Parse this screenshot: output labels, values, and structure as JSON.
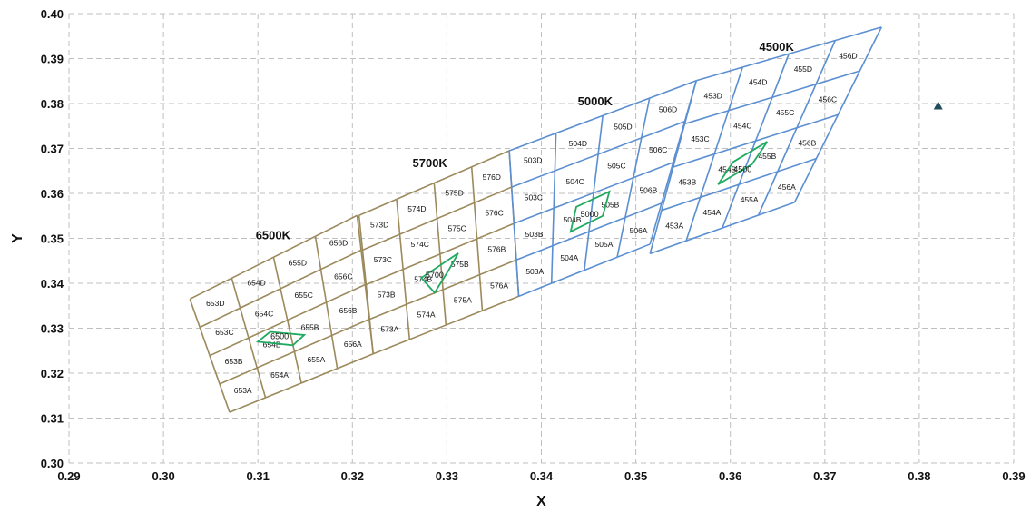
{
  "chart_data": {
    "type": "scatter",
    "xlabel": "X",
    "ylabel": "Y",
    "xlim": [
      0.29,
      0.39
    ],
    "ylim": [
      0.3,
      0.4
    ],
    "xticks": [
      "0.29",
      "0.30",
      "0.31",
      "0.32",
      "0.33",
      "0.34",
      "0.35",
      "0.36",
      "0.37",
      "0.38",
      "0.39"
    ],
    "yticks": [
      "0.30",
      "0.31",
      "0.32",
      "0.33",
      "0.34",
      "0.35",
      "0.36",
      "0.37",
      "0.38",
      "0.39",
      "0.40"
    ],
    "grid": true,
    "colors": {
      "warm_bins": "#9C8A5C",
      "cool_bins": "#5B8FD1",
      "center_quads": "#1FAA60",
      "marker": "#1F4E5A",
      "grid": "#BFBFBF"
    },
    "groups": [
      {
        "name": "6500K",
        "color": "warm",
        "bl": [
          0.307,
          0.3113
        ],
        "br": [
          0.3222,
          0.3243
        ],
        "tr": [
          0.3205,
          0.3551
        ],
        "tl": [
          0.3028,
          0.3365
        ],
        "cols": [
          "3",
          "4",
          "5",
          "6",
          "7"
        ],
        "rows": [
          "A",
          "B",
          "C",
          "D"
        ],
        "label": "6500K",
        "label_at": [
          0.3116,
          0.3498
        ],
        "center": {
          "label": "6500",
          "at": [
            0.3123,
            0.3282
          ],
          "pts": [
            [
              0.3113,
              0.3292
            ],
            [
              0.3149,
              0.3285
            ],
            [
              0.3137,
              0.3262
            ],
            [
              0.31,
              0.327
            ]
          ]
        }
      },
      {
        "name": "5700K",
        "color": "warm",
        "bl": [
          0.3222,
          0.3243
        ],
        "br": [
          0.3376,
          0.3371
        ],
        "tr": [
          0.3366,
          0.3695
        ],
        "tl": [
          0.3207,
          0.3551
        ],
        "cols": [
          "3",
          "4",
          "5",
          "6",
          "7"
        ],
        "rows": [
          "A",
          "B",
          "C",
          "D"
        ],
        "label": "5700K",
        "label_at": [
          0.3282,
          0.3659
        ],
        "center": {
          "label": "5700",
          "at": [
            0.3287,
            0.3418
          ],
          "pts": [
            [
              0.3312,
              0.3467
            ],
            [
              0.3301,
              0.3426
            ],
            [
              0.3287,
              0.3379
            ],
            [
              0.3273,
              0.3412
            ]
          ]
        }
      },
      {
        "name": "5000K",
        "color": "cool",
        "bl": [
          0.3376,
          0.3371
        ],
        "br": [
          0.3515,
          0.3487
        ],
        "tr": [
          0.3564,
          0.3851
        ],
        "tl": [
          0.3366,
          0.3695
        ],
        "cols": [
          "3",
          "4",
          "5",
          "6",
          "7"
        ],
        "rows": [
          "A",
          "B",
          "C",
          "D"
        ],
        "label": "5000K",
        "label_at": [
          0.3457,
          0.3796
        ],
        "center": {
          "label": "5000",
          "at": [
            0.3451,
            0.3554
          ],
          "pts": [
            [
              0.3472,
              0.3604
            ],
            [
              0.3465,
              0.355
            ],
            [
              0.3431,
              0.3515
            ],
            [
              0.3437,
              0.357
            ]
          ]
        }
      },
      {
        "name": "4500K",
        "color": "cool",
        "bl": [
          0.3515,
          0.3466
        ],
        "br": [
          0.3668,
          0.358
        ],
        "tr": [
          0.376,
          0.397
        ],
        "tl": [
          0.3564,
          0.3851
        ],
        "cols": [
          "3",
          "4",
          "5",
          "6",
          "7"
        ],
        "rows": [
          "A",
          "B",
          "C",
          "D"
        ],
        "label": "4500K",
        "label_at": [
          0.3649,
          0.3917
        ],
        "center": {
          "label": "4500",
          "at": [
            0.3613,
            0.3654
          ],
          "pts": [
            [
              0.3639,
              0.3715
            ],
            [
              0.3623,
              0.3665
            ],
            [
              0.3587,
              0.362
            ],
            [
              0.3603,
              0.367
            ]
          ]
        }
      }
    ],
    "marker": {
      "x": 0.382,
      "y": 0.3795,
      "shape": "triangle"
    }
  }
}
